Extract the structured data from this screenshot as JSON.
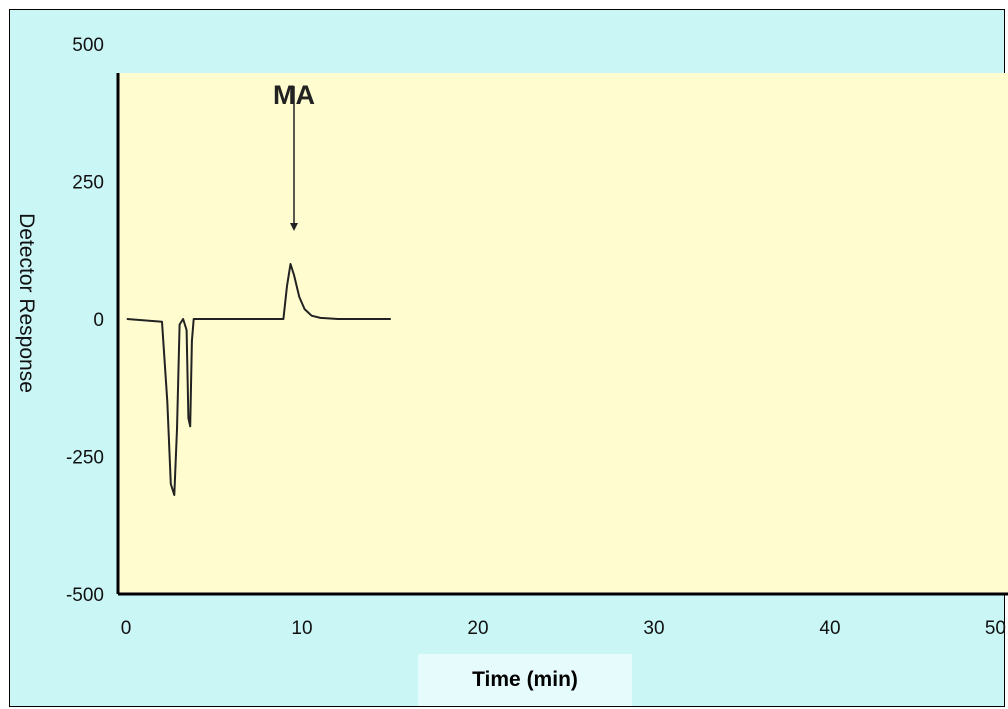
{
  "chart_data": {
    "type": "line",
    "title": "",
    "xlabel": "Time (min)",
    "ylabel": "Detector Response",
    "xlim": [
      0,
      50
    ],
    "ylim": [
      -500,
      500
    ],
    "xticks": [
      0,
      10,
      20,
      30,
      40,
      50
    ],
    "yticks": [
      500,
      250,
      0,
      -250,
      -500
    ],
    "grid": false,
    "series": [
      {
        "color": "#222222",
        "x": [
          0.5,
          2.5,
          2.8,
          3.0,
          3.2,
          3.35,
          3.5,
          3.7,
          3.9,
          4.0,
          4.1,
          4.2,
          4.3,
          4.6,
          9.4,
          9.6,
          9.8,
          10.0,
          10.3,
          10.6,
          11.0,
          11.5,
          12.5,
          15.5
        ],
        "y": [
          0,
          -5,
          -150,
          -300,
          -320,
          -200,
          -10,
          0,
          -20,
          -180,
          -195,
          -40,
          0,
          0,
          0,
          60,
          100,
          80,
          40,
          18,
          6,
          2,
          0,
          0
        ]
      }
    ],
    "annotations": [
      {
        "text": "MA",
        "x": 10,
        "arrow_to_y": 160
      }
    ],
    "colors": {
      "page_background": "#caf6f6",
      "plot_background": "#fffdd0",
      "xlabel_box": "#e6fcfc"
    }
  }
}
